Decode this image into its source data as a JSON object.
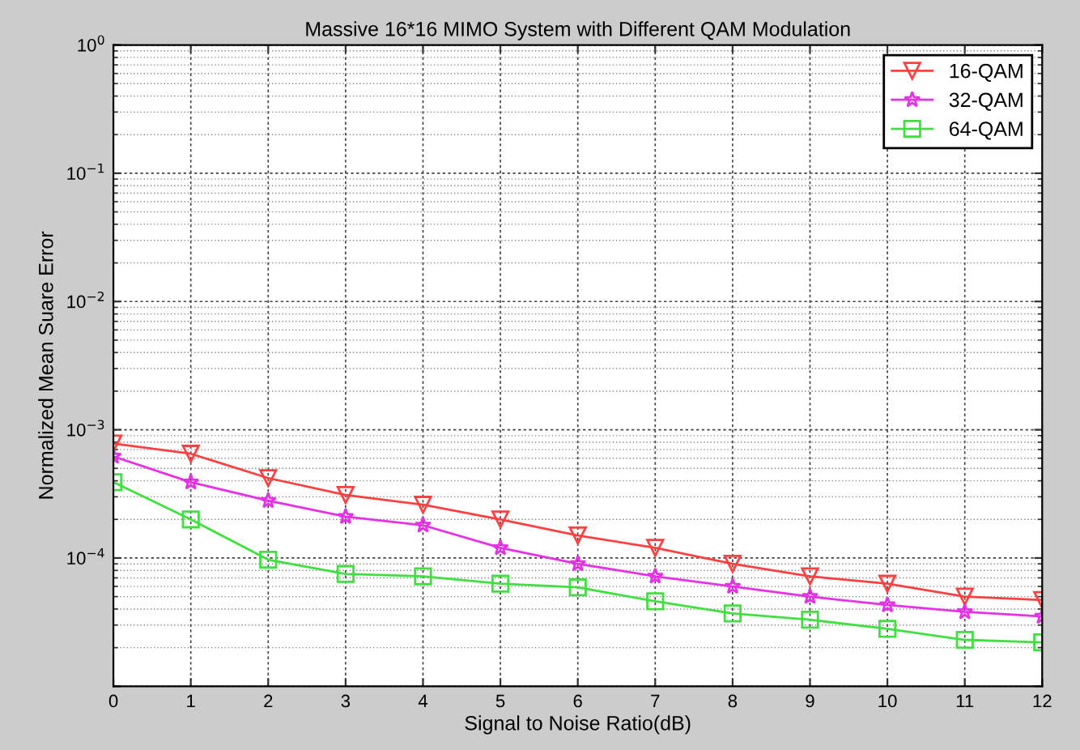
{
  "chart_data": {
    "type": "line",
    "title": "Massive 16*16 MIMO System with Different QAM Modulation",
    "xlabel": "Signal to Noise Ratio(dB)",
    "ylabel": "Normalized Mean Suare Error",
    "x": [
      0,
      1,
      2,
      3,
      4,
      5,
      6,
      7,
      8,
      9,
      10,
      11,
      12
    ],
    "series": [
      {
        "name": "16-QAM",
        "color": "#ff4040",
        "marker": "triangle",
        "values": [
          0.00078,
          0.00065,
          0.00042,
          0.00031,
          0.00026,
          0.0002,
          0.00015,
          0.00012,
          9e-05,
          7.2e-05,
          6.3e-05,
          5e-05,
          4.7e-05
        ]
      },
      {
        "name": "32-QAM",
        "color": "#e830e8",
        "marker": "star",
        "values": [
          0.00062,
          0.00039,
          0.00028,
          0.00021,
          0.00018,
          0.00012,
          9e-05,
          7.2e-05,
          6e-05,
          5e-05,
          4.3e-05,
          3.8e-05,
          3.5e-05
        ]
      },
      {
        "name": "64-QAM",
        "color": "#40e040",
        "marker": "square",
        "values": [
          0.00039,
          0.0002,
          9.7e-05,
          7.5e-05,
          7.2e-05,
          6.3e-05,
          5.9e-05,
          4.6e-05,
          3.7e-05,
          3.3e-05,
          2.8e-05,
          2.3e-05,
          2.2e-05
        ]
      }
    ],
    "log": "y",
    "xlim": [
      0,
      12
    ],
    "ylim": [
      1e-05,
      1
    ],
    "xticks": [
      0,
      1,
      2,
      3,
      4,
      5,
      6,
      7,
      8,
      9,
      10,
      11,
      12
    ],
    "yticks": [
      {
        "value": 1e-05,
        "label": null
      },
      {
        "value": 0.0001,
        "label": "10$^{−4}$"
      },
      {
        "value": 0.001,
        "label": "10$^{−3}$"
      },
      {
        "value": 0.01,
        "label": "10$^{−2}$"
      },
      {
        "value": 0.1,
        "label": "10$^{−1}$"
      },
      {
        "value": 1,
        "label": "10$^{0}$"
      }
    ],
    "grid": true,
    "legend": "top right",
    "line_style": "solid"
  }
}
